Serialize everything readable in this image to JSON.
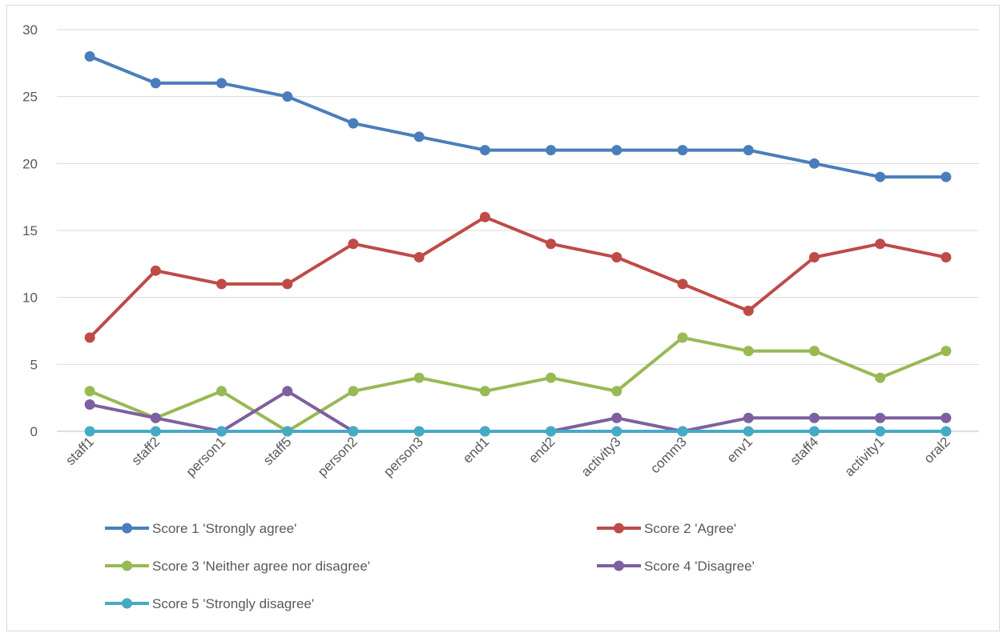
{
  "chart_data": {
    "type": "line",
    "title": "",
    "xlabel": "",
    "ylabel": "",
    "ylim": [
      0,
      30
    ],
    "yticks": [
      0,
      5,
      10,
      15,
      20,
      25,
      30
    ],
    "grid": true,
    "legend_position": "bottom",
    "categories": [
      "staff1",
      "staff2",
      "person1",
      "staff5",
      "person2",
      "person3",
      "end1",
      "end2",
      "activity3",
      "comm3",
      "env1",
      "staff4",
      "activity1",
      "oral2"
    ],
    "series": [
      {
        "name": "Score 1 'Strongly agree'",
        "color": "#4a7ebb",
        "values": [
          28,
          26,
          26,
          25,
          23,
          22,
          21,
          21,
          21,
          21,
          21,
          20,
          19,
          19
        ]
      },
      {
        "name": "Score 2 'Agree'",
        "color": "#be4b48",
        "values": [
          7,
          12,
          11,
          11,
          14,
          13,
          16,
          14,
          13,
          11,
          9,
          13,
          14,
          13
        ]
      },
      {
        "name": "Score 3 'Neither agree nor disagree'",
        "color": "#98b954",
        "values": [
          3,
          1,
          3,
          0,
          3,
          4,
          3,
          4,
          3,
          7,
          6,
          6,
          4,
          6
        ]
      },
      {
        "name": "Score 4 'Disagree'",
        "color": "#7d60a0",
        "values": [
          2,
          1,
          0,
          3,
          0,
          0,
          0,
          0,
          1,
          0,
          1,
          1,
          1,
          1
        ]
      },
      {
        "name": "Score 5 'Strongly disagree'",
        "color": "#46aac5",
        "values": [
          0,
          0,
          0,
          0,
          0,
          0,
          0,
          0,
          0,
          0,
          0,
          0,
          0,
          0
        ]
      }
    ]
  }
}
